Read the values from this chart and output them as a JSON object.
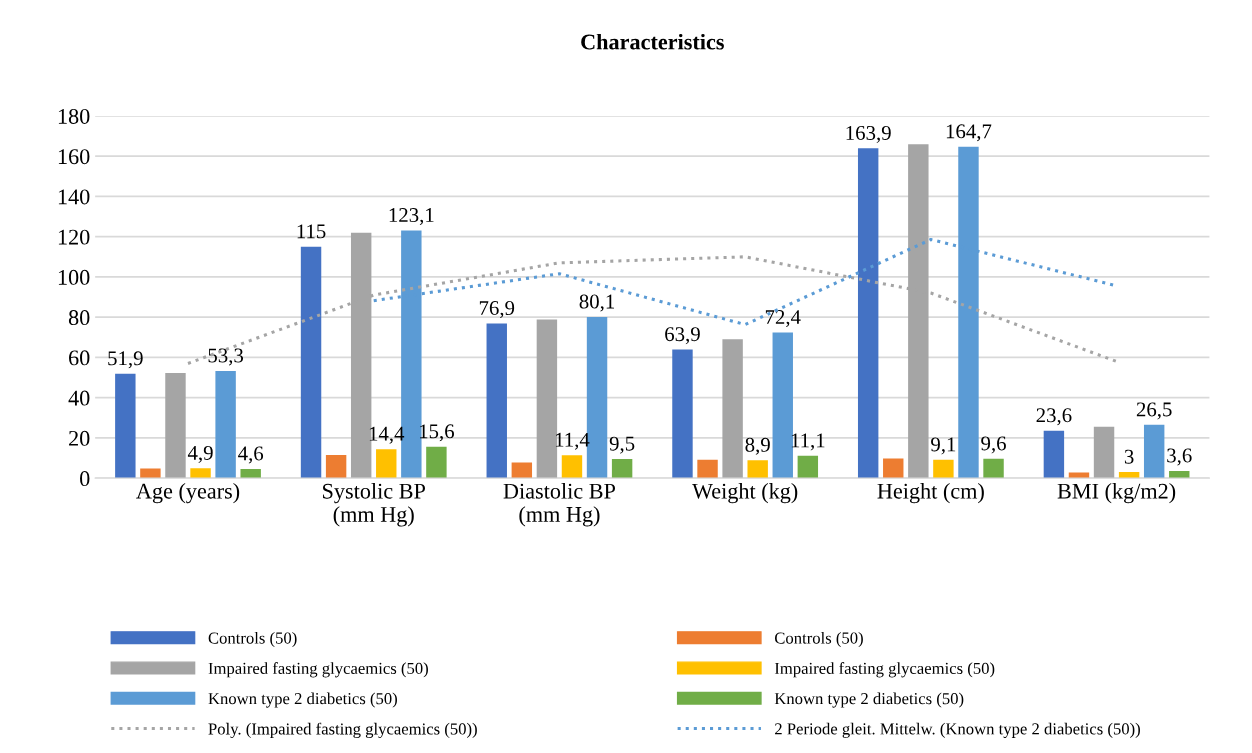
{
  "chart_data": {
    "type": "bar",
    "title": "Characteristics",
    "categories": [
      "Age (years)",
      "Systolic BP\n(mm Hg)",
      "Diastolic BP\n(mm Hg)",
      "Weight (kg)",
      "Height (cm)",
      "BMI (kg/m2)"
    ],
    "series": [
      {
        "name": "Controls (50)",
        "color": "#4472c4",
        "values": [
          51.9,
          115,
          76.9,
          63.9,
          163.9,
          23.6
        ],
        "value_labels": [
          "51,9",
          "115",
          "76,9",
          "63,9",
          "163,9",
          "23,6"
        ]
      },
      {
        "name": "Controls (50)",
        "color": "#ed7d31",
        "values": [
          4.8,
          11.5,
          7.8,
          9.2,
          9.8,
          2.8
        ]
      },
      {
        "name": "Impaired fasting glycaemics (50)",
        "color": "#a5a5a5",
        "values": [
          52.2,
          122,
          78.8,
          69,
          166,
          25.5
        ]
      },
      {
        "name": "Impaired fasting glycaemics (50)",
        "color": "#ffc000",
        "values": [
          4.9,
          14.4,
          11.4,
          8.9,
          9.1,
          3
        ],
        "value_labels": [
          "4,9",
          "14,4",
          "11,4",
          "8,9",
          "9,1",
          "3"
        ]
      },
      {
        "name": "Known type 2 diabetics (50)",
        "color": "#5b9bd5",
        "values": [
          53.3,
          123.1,
          80.1,
          72.4,
          164.7,
          26.5
        ],
        "value_labels": [
          "53,3",
          "123,1",
          "80,1",
          "72,4",
          "164,7",
          "26,5"
        ]
      },
      {
        "name": "Known type 2 diabetics (50)",
        "color": "#70ad47",
        "values": [
          4.6,
          15.6,
          9.5,
          11.1,
          9.6,
          3.6
        ],
        "value_labels": [
          "4,6",
          "15,6",
          "9,5",
          "11,1",
          "9,6",
          "3,6"
        ]
      },
      {
        "name": "Poly. (Impaired fasting glycaemics (50))",
        "type": "line",
        "color": "#a5a5a5",
        "line_style": "dotted",
        "values": [
          57,
          91,
          107,
          110,
          92,
          58
        ]
      },
      {
        "name": "2 Periode gleit. Mittelw. (Known type 2 diabetics (50))",
        "type": "line",
        "color": "#5b9bd5",
        "line_style": "dotted",
        "values": [
          null,
          88.2,
          101.6,
          76.3,
          118.6,
          95.6
        ]
      }
    ],
    "ylim": [
      0,
      180
    ],
    "yticks": [
      0,
      20,
      40,
      60,
      80,
      100,
      120,
      140,
      160,
      180
    ],
    "grid": "y",
    "legend": "bottom"
  }
}
